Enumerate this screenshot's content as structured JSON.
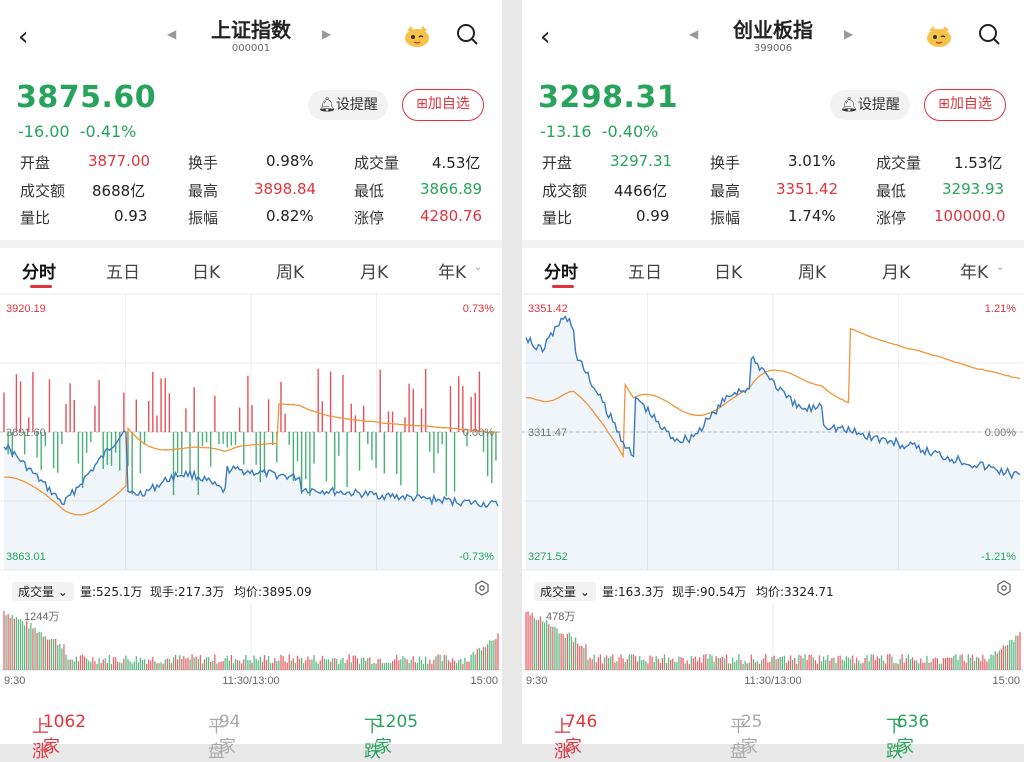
{
  "panels": [
    {
      "title": "上证指数",
      "code": "000001",
      "price": "3875.60",
      "change": "-16.00",
      "change_pct": "-0.41%",
      "remind_label": "设提醒",
      "add_label": "加自选",
      "stats": {
        "open_label": "开盘",
        "open": "3877.00",
        "turnover_label": "换手",
        "turnover": "0.98%",
        "volume_label": "成交量",
        "volume": "4.53亿",
        "amount_label": "成交额",
        "amount": "8688亿",
        "high_label": "最高",
        "high": "3898.84",
        "low_label": "最低",
        "low": "3866.89",
        "ratio_label": "量比",
        "ratio": "0.93",
        "amplitude_label": "振幅",
        "amplitude": "0.82%",
        "limit_label": "涨停",
        "limit": "4280.76"
      },
      "tabs": [
        "分时",
        "五日",
        "日K",
        "周K",
        "月K",
        "年K"
      ],
      "chart": {
        "top_price": "3920.19",
        "top_pct": "0.73%",
        "mid_price": "3891.60",
        "mid_pct": "0.00%",
        "bottom_price": "3863.01",
        "bottom_pct": "-0.73%"
      },
      "volume_bar": {
        "dropdown_label": "成交量",
        "volume": "量:525.1万",
        "hand": "现手:217.3万",
        "avg": "均价:3895.09",
        "max_label": "1244万"
      },
      "time_axis": [
        "9:30",
        "11:30/13:00",
        "15:00"
      ],
      "breadth": {
        "up_label": "上涨",
        "up": "1062家",
        "flat_label": "平盘",
        "flat": "94家",
        "down_label": "下跌",
        "down": "1205家"
      }
    },
    {
      "title": "创业板指",
      "code": "399006",
      "price": "3298.31",
      "change": "-13.16",
      "change_pct": "-0.40%",
      "remind_label": "设提醒",
      "add_label": "加自选",
      "stats": {
        "open_label": "开盘",
        "open": "3297.31",
        "turnover_label": "换手",
        "turnover": "3.01%",
        "volume_label": "成交量",
        "volume": "1.53亿",
        "amount_label": "成交额",
        "amount": "4466亿",
        "high_label": "最高",
        "high": "3351.42",
        "low_label": "最低",
        "low": "3293.93",
        "ratio_label": "量比",
        "ratio": "0.99",
        "amplitude_label": "振幅",
        "amplitude": "1.74%",
        "limit_label": "涨停",
        "limit": "100000.0"
      },
      "tabs": [
        "分时",
        "五日",
        "日K",
        "周K",
        "月K",
        "年K"
      ],
      "chart": {
        "top_price": "3351.42",
        "top_pct": "1.21%",
        "mid_price": "3311.47",
        "mid_pct": "0.00%",
        "bottom_price": "3271.52",
        "bottom_pct": "-1.21%"
      },
      "volume_bar": {
        "dropdown_label": "成交量",
        "volume": "量:163.3万",
        "hand": "现手:90.54万",
        "avg": "均价:3324.71",
        "max_label": "478万"
      },
      "time_axis": [
        "9:30",
        "11:30/13:00",
        "15:00"
      ],
      "breadth": {
        "up_label": "上涨",
        "up": "746家",
        "flat_label": "平盘",
        "flat": "25家",
        "down_label": "下跌",
        "down": "636家"
      }
    }
  ],
  "colors": {
    "up": "#e0333c",
    "down": "#27a35b",
    "price_line": "#3a7bbf",
    "avg_line": "#f0953a"
  },
  "icons": {
    "back": "chevron-left-icon",
    "prev": "triangle-left-icon",
    "next": "triangle-right-icon",
    "mascot": "mascot-icon",
    "search": "search-icon",
    "bell": "bell-icon",
    "add": "plus-square-icon",
    "settings": "hexagon-settings-icon"
  }
}
